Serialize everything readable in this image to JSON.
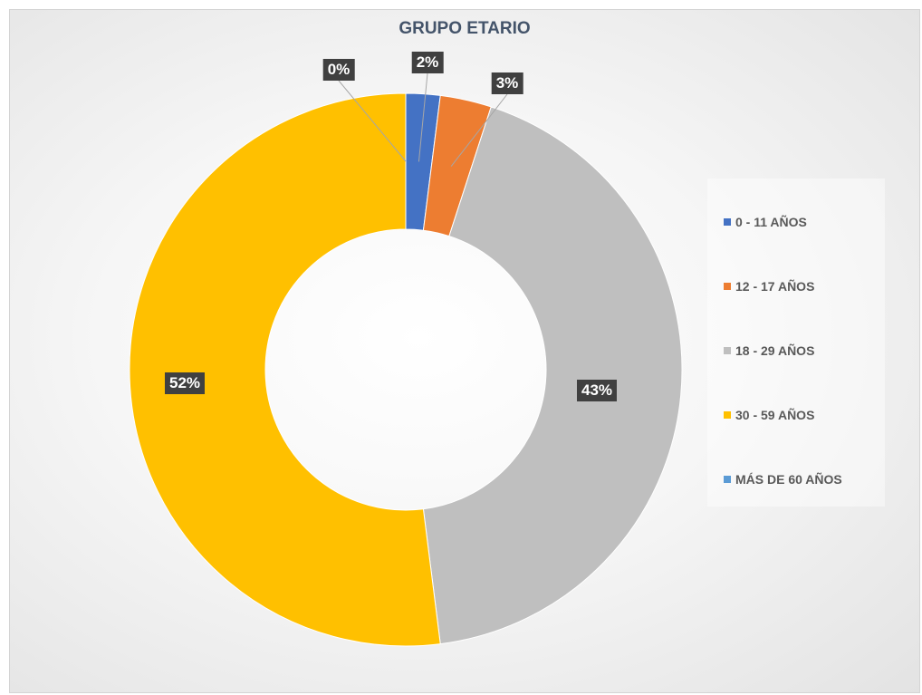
{
  "chart_data": {
    "type": "pie",
    "title": "GRUPO ETARIO",
    "categories": [
      "0 - 11 AÑOS",
      "12 - 17 AÑOS",
      "18 - 29 AÑOS",
      "30 - 59 AÑOS",
      "MÁS DE 60 AÑOS"
    ],
    "values": [
      2,
      3,
      43,
      52,
      0
    ],
    "labels": [
      "2%",
      "3%",
      "43%",
      "52%",
      "0%"
    ],
    "colors": [
      "#4472c4",
      "#ed7d31",
      "#bfbfbf",
      "#ffc000",
      "#5b9bd5"
    ],
    "donut": true,
    "legend": "right"
  }
}
